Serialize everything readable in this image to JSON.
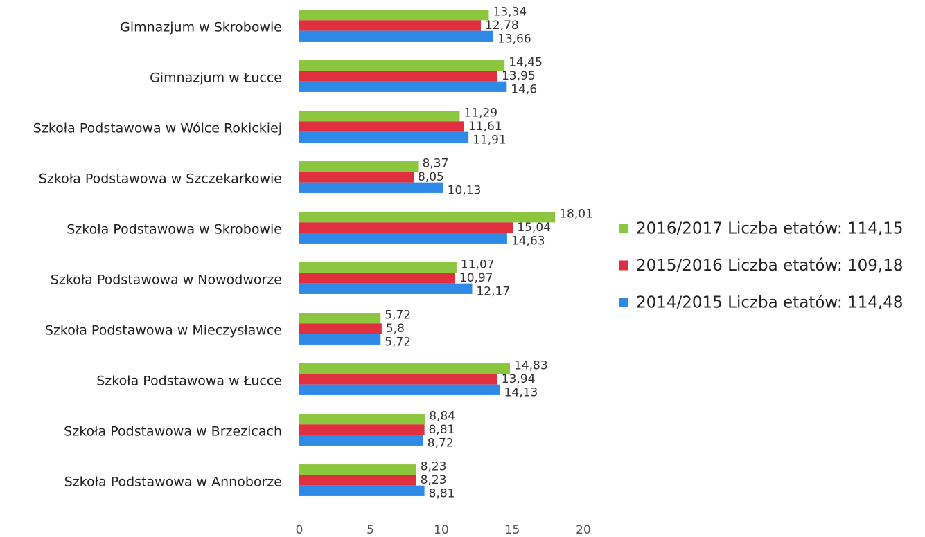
{
  "chart_data": {
    "type": "hbar",
    "categories": [
      "Gimnazjum w Skrobowie",
      "Gimnazjum w Łucce",
      "Szkoła Podstawowa w Wólce Rokickiej",
      "Szkoła Podstawowa w Szczekarkowie",
      "Szkoła Podstawowa w Skrobowie",
      "Szkoła Podstawowa w Nowodworze",
      "Szkoła Podstawowa w Mieczysławce",
      "Szkoła Podstawowa w Łucce",
      "Szkoła Podstawowa w Brzezicach",
      "Szkoła Podstawowa w Annoborze"
    ],
    "series": [
      {
        "name": "2016/2017 Liczba etatów: 114,15",
        "color": "#8cc63f",
        "values": [
          13.34,
          14.45,
          11.29,
          8.37,
          18.01,
          11.07,
          5.72,
          14.83,
          8.84,
          8.23
        ],
        "value_labels": [
          "13,34",
          "14,45",
          "11,29",
          "8,37",
          "18,01",
          "11,07",
          "5,72",
          "14,83",
          "8,84",
          "8,23"
        ]
      },
      {
        "name": "2015/2016 Liczba etatów: 109,18",
        "color": "#e0303f",
        "values": [
          12.78,
          13.95,
          11.61,
          8.05,
          15.04,
          10.97,
          5.8,
          13.94,
          8.81,
          8.23
        ],
        "value_labels": [
          "12,78",
          "13,95",
          "11,61",
          "8,05",
          "15,04",
          "10,97",
          "5,8",
          "13,94",
          "8,81",
          "8,23"
        ]
      },
      {
        "name": "2014/2015 Liczba etatów: 114,48",
        "color": "#2e8ae6",
        "values": [
          13.66,
          14.6,
          11.91,
          10.13,
          14.63,
          12.17,
          5.72,
          14.13,
          8.72,
          8.81
        ],
        "value_labels": [
          "13,66",
          "14,6",
          "11,91",
          "10,13",
          "14,63",
          "12,17",
          "5,72",
          "14,13",
          "8,72",
          "8,81"
        ]
      }
    ],
    "xlim": [
      0,
      20
    ],
    "xticks": [
      0,
      5,
      10,
      15,
      20
    ],
    "grid": false,
    "legend": "right"
  }
}
